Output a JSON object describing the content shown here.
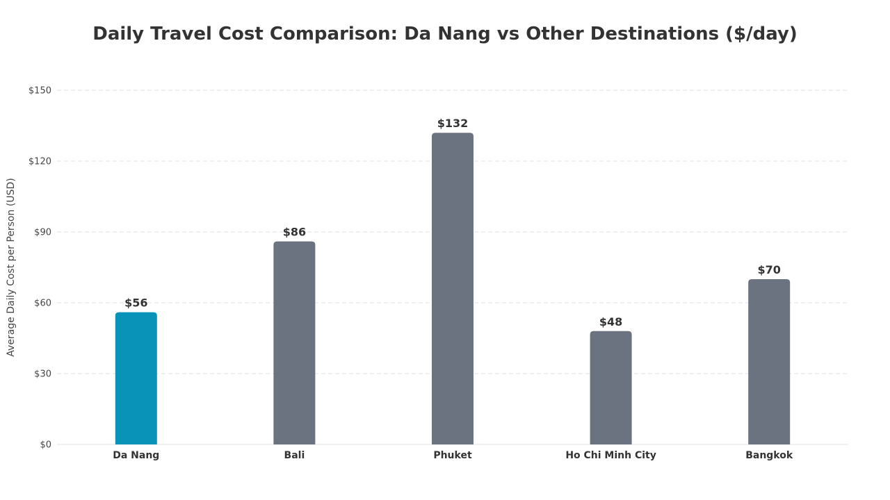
{
  "chart_data": {
    "type": "bar",
    "title": "Daily Travel Cost Comparison: Da Nang vs Other Destinations ($/day)",
    "xlabel": "",
    "ylabel": "Average Daily Cost per Person (USD)",
    "categories": [
      "Da Nang",
      "Bali",
      "Phuket",
      "Ho Chi Minh City",
      "Bangkok"
    ],
    "values": [
      56,
      86,
      132,
      48,
      70
    ],
    "value_labels": [
      "$56",
      "$86",
      "$132",
      "$48",
      "$70"
    ],
    "ylim": [
      0,
      150
    ],
    "yticks": [
      0,
      30,
      60,
      90,
      120,
      150
    ],
    "ytick_labels": [
      "$0",
      "$30",
      "$60",
      "$90",
      "$120",
      "$150"
    ],
    "grid": true,
    "highlight_index": 0,
    "colors": {
      "highlight": "#0a93b8",
      "default": "#6b7280",
      "grid": "#e2e2e2",
      "text": "#333333"
    }
  }
}
